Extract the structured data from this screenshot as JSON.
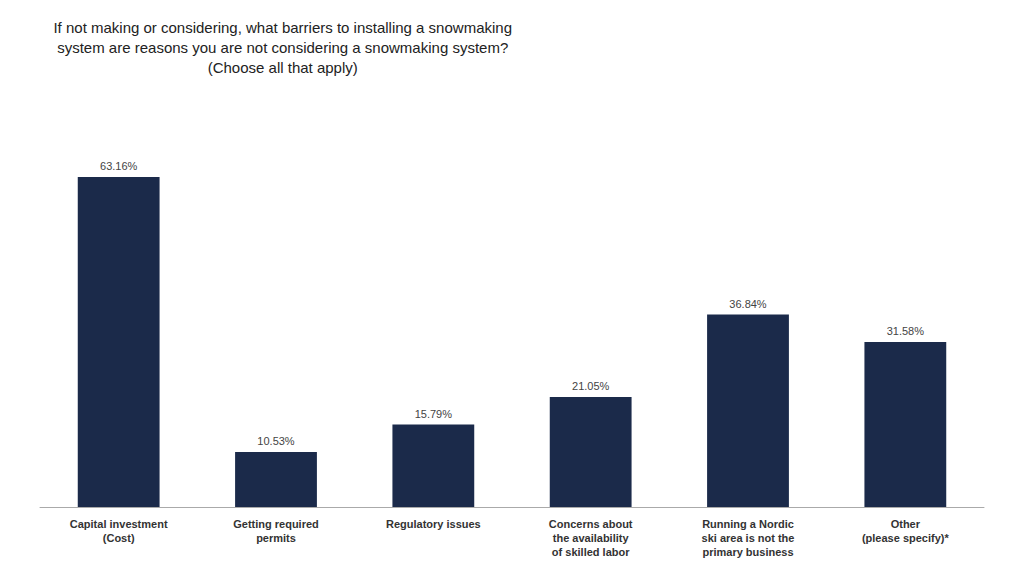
{
  "chart_data": {
    "type": "bar",
    "title": "If not making or considering, what barriers to installing a snowmaking\nsystem are reasons you are not considering a snowmaking system?\n(Choose all that apply)",
    "categories": [
      "Capital investment\n(Cost)",
      "Getting required\npermits",
      "Regulatory issues",
      "Concerns about\nthe availability\nof skilled labor",
      "Running a Nordic\nski area is not the\nprimary business",
      "Other\n(please specify)*"
    ],
    "values": [
      63.16,
      10.53,
      15.79,
      21.05,
      36.84,
      31.58
    ],
    "value_labels": [
      "63.16%",
      "10.53%",
      "15.79%",
      "21.05%",
      "36.84%",
      "31.58%"
    ],
    "color": "#1b2a4a",
    "ylim": [
      0,
      75
    ],
    "data_labels": true,
    "tick_labels": "x",
    "grid": false
  }
}
